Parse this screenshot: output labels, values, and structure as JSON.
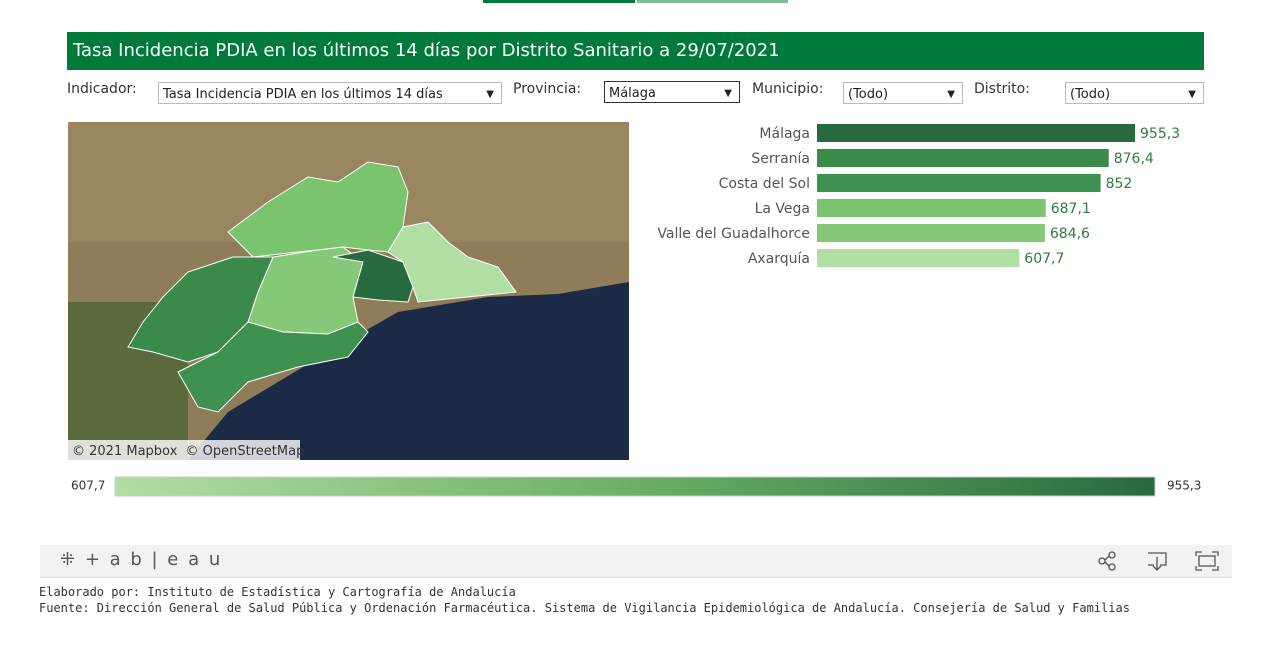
{
  "header": {
    "title": "Tasa Incidencia PDIA en los últimos 14 días por Distrito Sanitario a 29/07/2021"
  },
  "filters": [
    {
      "label": "Indicador:",
      "value": "Tasa Incidencia PDIA en los últimos 14 días"
    },
    {
      "label": "Provincia:",
      "value": "Málaga"
    },
    {
      "label": "Municipio:",
      "value": "(Todo)"
    },
    {
      "label": "Distrito:",
      "value": "(Todo)"
    }
  ],
  "map": {
    "credit": "© 2021 Mapbox  © OpenStreetMap"
  },
  "chart_data": {
    "type": "hbar",
    "categories": [
      "Málaga",
      "Serranía",
      "Costa del Sol",
      "La Vega",
      "Valle del Guadalhorce",
      "Axarquía"
    ],
    "values": [
      955.3,
      876.4,
      852,
      687.1,
      684.6,
      607.7
    ],
    "value_labels": [
      "955,3",
      "876,4",
      "852",
      "687,1",
      "684,6",
      "607,7"
    ],
    "colors": [
      "#276b3e",
      "#3a8a4a",
      "#3f9150",
      "#7bc46f",
      "#85c978",
      "#b1dfa3"
    ],
    "xlim": [
      0,
      955.3
    ]
  },
  "color_legend": {
    "min": {
      "value": 607.7,
      "label": "607,7"
    },
    "max": {
      "value": 955.3,
      "label": "955,3"
    }
  },
  "toolbar": {
    "brand": "+ a b | e a u"
  },
  "footer": {
    "line1": "Elaborado por: Instituto de Estadística y Cartografía de Andalucía",
    "line2": "Fuente: Dirección General de Salud Pública y Ordenación Farmacéutica. Sistema de Vigilancia Epidemiológica de Andalucía. Consejería de Salud y Familias"
  }
}
